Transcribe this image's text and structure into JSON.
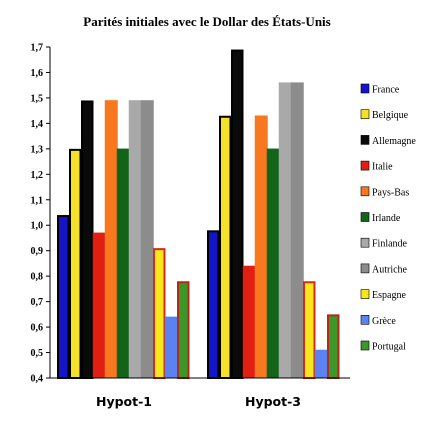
{
  "chart_data": {
    "type": "bar",
    "title": "Parités initiales avec le Dollar des États-Unis",
    "categories": [
      "Hypot-1",
      "Hypot-3"
    ],
    "ylim": [
      0.4,
      1.7
    ],
    "yticks": [
      "0,4",
      "0,5",
      "0,6",
      "0,7",
      "0,8",
      "0,9",
      "1,0",
      "1,1",
      "1,2",
      "1,3",
      "1,4",
      "1,5",
      "1,6",
      "1,7"
    ],
    "grid": false,
    "legend_position": "right",
    "series": [
      {
        "name": "France",
        "values": [
          1.04,
          0.98
        ],
        "color": "#1414c8",
        "stroke": "#000000"
      },
      {
        "name": "Belgique",
        "values": [
          1.3,
          1.43
        ],
        "color": "#f5e02a",
        "stroke": "#000000"
      },
      {
        "name": "Allemagne",
        "values": [
          1.49,
          1.69
        ],
        "color": "#0a0a0a",
        "stroke": "#000000"
      },
      {
        "name": "Italie",
        "values": [
          0.97,
          0.84
        ],
        "color": "#e01e12",
        "stroke": "#e01e12"
      },
      {
        "name": "Pays-Bas",
        "values": [
          1.49,
          1.43
        ],
        "color": "#f7781e",
        "stroke": "#f7781e"
      },
      {
        "name": "Irlande",
        "values": [
          1.3,
          1.3
        ],
        "color": "#126418",
        "stroke": "#126418"
      },
      {
        "name": "Finlande",
        "values": [
          1.49,
          1.56
        ],
        "color": "#a9a9a9",
        "stroke": "#a9a9a9"
      },
      {
        "name": "Autriche",
        "values": [
          1.49,
          1.56
        ],
        "color": "#8c8c8c",
        "stroke": "#8c8c8c"
      },
      {
        "name": "Espagne",
        "values": [
          0.91,
          0.78
        ],
        "color": "#f7e81e",
        "stroke": "#d42a1a"
      },
      {
        "name": "Grèce",
        "values": [
          0.64,
          0.51
        ],
        "color": "#5a82f0",
        "stroke": "#5a82f0"
      },
      {
        "name": "Portugal",
        "values": [
          0.78,
          0.65
        ],
        "color": "#3c9628",
        "stroke": "#b42a1a"
      }
    ]
  }
}
